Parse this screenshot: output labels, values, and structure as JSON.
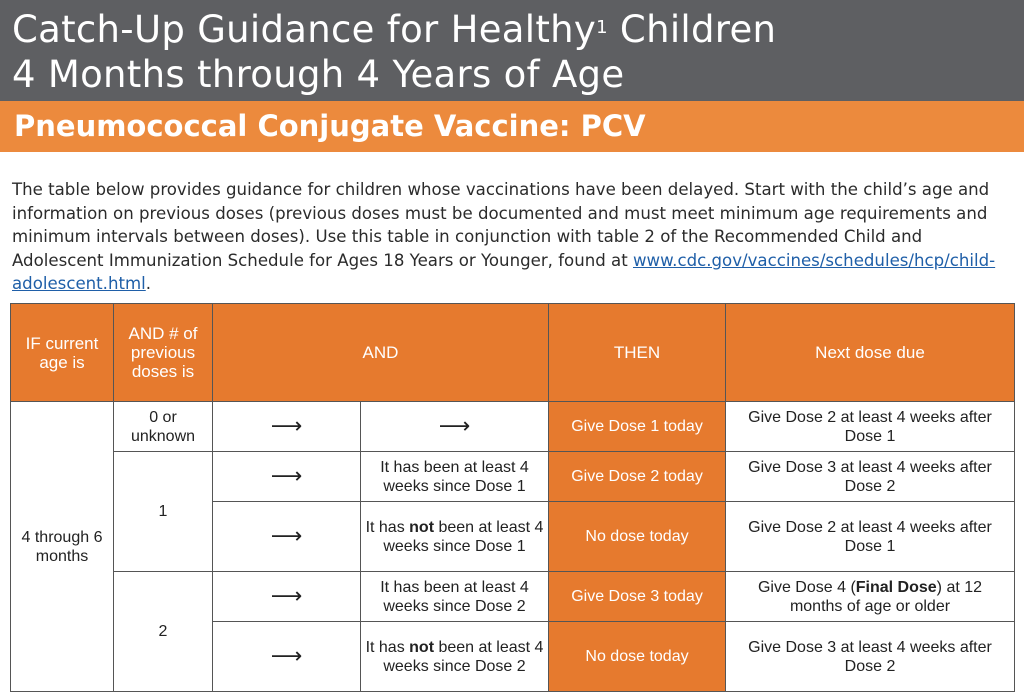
{
  "header": {
    "title_line1_pre": "Catch-Up Guidance for Healthy",
    "title_sup": "1",
    "title_line1_post": " Children",
    "title_line2": "4 Months through 4 Years of Age",
    "subtitle": "Pneumococcal Conjugate Vaccine: PCV",
    "colors": {
      "title_band": "#5e5f62",
      "subtitle_band": "#ec8a3d",
      "table_orange": "#e67a2e"
    }
  },
  "intro": {
    "text": "The table below provides guidance for children whose vaccinations have been delayed. Start with the child’s age and information on previous doses (previous doses must be documented and must meet minimum age requirements and minimum intervals between doses). Use this table in conjunction with table 2 of the Recommended Child and Adolescent Immunization Schedule for Ages 18 Years or Younger, found at ",
    "link": "www.cdc.gov/vaccines/schedules/hcp/child-adolescent.html",
    "end": "."
  },
  "table": {
    "headers": {
      "age": "IF current age is",
      "doses": "AND # of previous doses is",
      "and": "AND",
      "then": "THEN",
      "next": "Next dose due"
    },
    "age_group": "4 through 6 months",
    "arrow": "⟶",
    "rows": [
      {
        "doses": "0 or unknown",
        "then": "Give Dose 1 today",
        "next": "Give Dose 2 at least 4 weeks after Dose 1"
      },
      {
        "doses": "1",
        "cond": "It has been at least 4 weeks since Dose 1",
        "then": "Give Dose 2 today",
        "next": "Give Dose 3 at least 4 weeks after Dose 2"
      },
      {
        "cond_pre": "It has ",
        "cond_bold": "not",
        "cond_post": " been at least 4 weeks since Dose 1",
        "then": "No dose today",
        "next": "Give Dose 2 at least 4 weeks after Dose 1"
      },
      {
        "doses": "2",
        "cond": "It has been at least 4 weeks since Dose 2",
        "then": "Give Dose 3 today",
        "next_pre": "Give Dose 4 (",
        "next_bold": "Final Dose",
        "next_post": ") at 12 months of age or older"
      },
      {
        "cond_pre": "It has ",
        "cond_bold": "not",
        "cond_post": " been at least 4 weeks since Dose 2",
        "then": "No dose today",
        "next": "Give Dose 3 at least 4 weeks after Dose 2"
      }
    ]
  }
}
